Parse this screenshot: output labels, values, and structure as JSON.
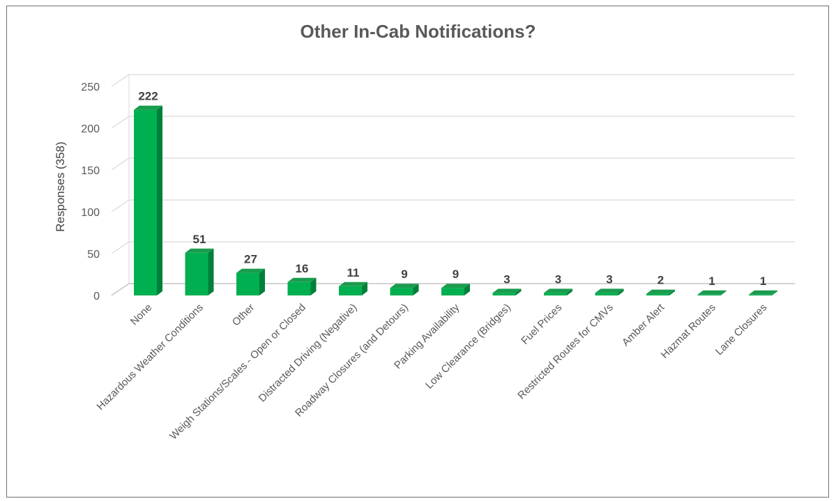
{
  "chart_data": {
    "type": "bar",
    "title": "Other In-Cab Notifications?",
    "xlabel": "",
    "ylabel": "Responses (358)",
    "ylim": [
      0,
      250
    ],
    "yticks": [
      0,
      50,
      100,
      150,
      200,
      250
    ],
    "grid": true,
    "legend": "none",
    "categories": [
      "None",
      "Hazardous Weather Conditions",
      "Other",
      "Weigh Stations/Scales - Open or Closed",
      "Distracted Driving (Negative)",
      "Roadway Closures (and Detours)",
      "Parking Availability",
      "Low Clearance (Bridges)",
      "Fuel Prices",
      "Restricted Routes for CMVs",
      "Amber Alert",
      "Hazmat Routes",
      "Lane Closures"
    ],
    "values": [
      222,
      51,
      27,
      16,
      11,
      9,
      9,
      3,
      3,
      3,
      2,
      1,
      1
    ],
    "colors": {
      "front": "#00b050",
      "side": "#00803a",
      "top": "#1a9c4e"
    }
  }
}
